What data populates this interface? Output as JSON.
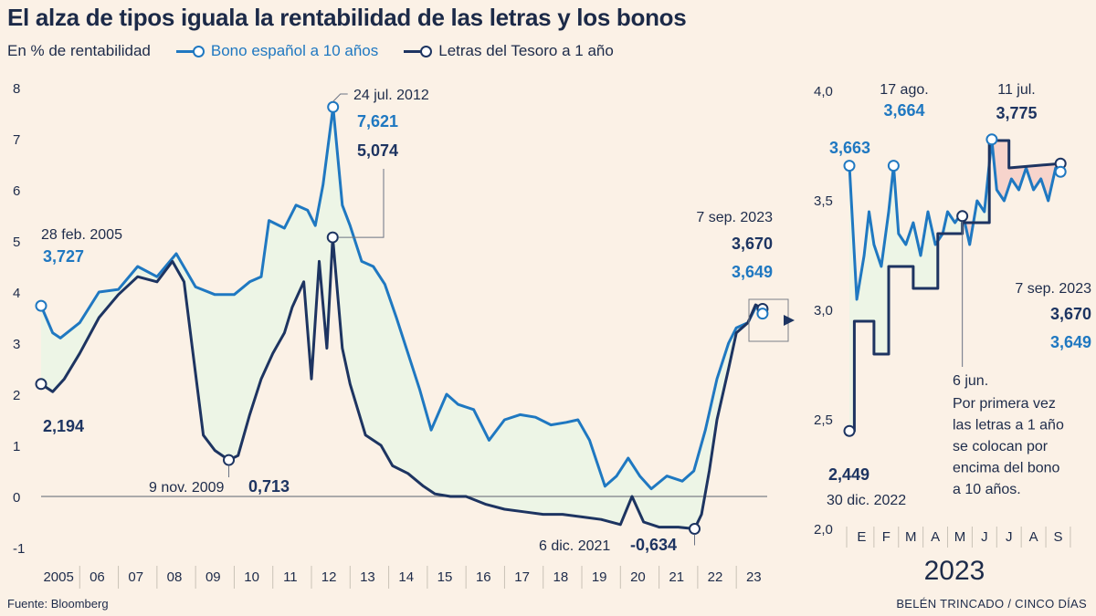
{
  "title": "El alza de tipos iguala la rentabilidad de las letras y los bonos",
  "unit_label": "En % de rentabilidad",
  "legend": [
    {
      "name": "Bono español a 10 años",
      "color": "#1f78c1"
    },
    {
      "name": "Letras del Tesoro a 1 año",
      "color": "#1d3461"
    }
  ],
  "colors": {
    "bono": "#1f78c1",
    "letras": "#1d3461",
    "fill": "#edf5e6",
    "fill_red": "#f7d4cc",
    "grid": "#c9c2b6",
    "text": "#1d2b4a"
  },
  "source": "Fuente: Bloomberg",
  "credit": "BELÉN TRINCADO / CINCO DÍAS",
  "chart_data": [
    {
      "type": "line",
      "id": "main",
      "x_labels": [
        "2005",
        "06",
        "07",
        "08",
        "09",
        "10",
        "11",
        "12",
        "13",
        "14",
        "15",
        "16",
        "17",
        "18",
        "19",
        "20",
        "21",
        "22",
        "23"
      ],
      "y_ticks": [
        "8",
        "7",
        "6",
        "5",
        "4",
        "3",
        "2",
        "1",
        "0",
        "-1"
      ],
      "ylim": [
        -1,
        8
      ],
      "xlim": [
        2005.0,
        2023.8
      ],
      "series": [
        {
          "name": "Bono español a 10 años",
          "points": [
            [
              2005.0,
              3.73
            ],
            [
              2005.3,
              3.2
            ],
            [
              2005.5,
              3.1
            ],
            [
              2006.0,
              3.4
            ],
            [
              2006.5,
              4.0
            ],
            [
              2007.0,
              4.05
            ],
            [
              2007.5,
              4.5
            ],
            [
              2008.0,
              4.3
            ],
            [
              2008.5,
              4.75
            ],
            [
              2009.0,
              4.1
            ],
            [
              2009.5,
              3.95
            ],
            [
              2010.0,
              3.95
            ],
            [
              2010.4,
              4.2
            ],
            [
              2010.7,
              4.3
            ],
            [
              2010.9,
              5.4
            ],
            [
              2011.3,
              5.25
            ],
            [
              2011.6,
              5.7
            ],
            [
              2011.9,
              5.6
            ],
            [
              2012.1,
              5.3
            ],
            [
              2012.3,
              6.1
            ],
            [
              2012.56,
              7.62
            ],
            [
              2012.8,
              5.7
            ],
            [
              2013.0,
              5.3
            ],
            [
              2013.3,
              4.6
            ],
            [
              2013.6,
              4.5
            ],
            [
              2013.9,
              4.15
            ],
            [
              2014.2,
              3.5
            ],
            [
              2014.5,
              2.8
            ],
            [
              2014.8,
              2.1
            ],
            [
              2015.1,
              1.3
            ],
            [
              2015.5,
              2.0
            ],
            [
              2015.8,
              1.8
            ],
            [
              2016.2,
              1.7
            ],
            [
              2016.6,
              1.1
            ],
            [
              2017.0,
              1.5
            ],
            [
              2017.4,
              1.6
            ],
            [
              2017.8,
              1.55
            ],
            [
              2018.2,
              1.4
            ],
            [
              2018.6,
              1.45
            ],
            [
              2018.9,
              1.5
            ],
            [
              2019.2,
              1.1
            ],
            [
              2019.6,
              0.2
            ],
            [
              2019.9,
              0.4
            ],
            [
              2020.2,
              0.75
            ],
            [
              2020.5,
              0.4
            ],
            [
              2020.8,
              0.15
            ],
            [
              2021.2,
              0.4
            ],
            [
              2021.6,
              0.3
            ],
            [
              2021.9,
              0.5
            ],
            [
              2022.2,
              1.3
            ],
            [
              2022.5,
              2.3
            ],
            [
              2022.8,
              3.0
            ],
            [
              2023.0,
              3.3
            ],
            [
              2023.3,
              3.4
            ],
            [
              2023.5,
              3.7
            ],
            [
              2023.68,
              3.649
            ]
          ]
        },
        {
          "name": "Letras del Tesoro a 1 año",
          "points": [
            [
              2005.0,
              2.2
            ],
            [
              2005.3,
              2.05
            ],
            [
              2005.6,
              2.3
            ],
            [
              2006.0,
              2.8
            ],
            [
              2006.5,
              3.5
            ],
            [
              2007.0,
              3.95
            ],
            [
              2007.5,
              4.3
            ],
            [
              2008.0,
              4.2
            ],
            [
              2008.4,
              4.6
            ],
            [
              2008.7,
              4.2
            ],
            [
              2008.9,
              3.0
            ],
            [
              2009.2,
              1.2
            ],
            [
              2009.5,
              0.9
            ],
            [
              2009.86,
              0.713
            ],
            [
              2010.1,
              0.8
            ],
            [
              2010.4,
              1.6
            ],
            [
              2010.7,
              2.3
            ],
            [
              2011.0,
              2.8
            ],
            [
              2011.3,
              3.2
            ],
            [
              2011.5,
              3.7
            ],
            [
              2011.8,
              4.2
            ],
            [
              2012.0,
              2.3
            ],
            [
              2012.2,
              4.6
            ],
            [
              2012.4,
              2.9
            ],
            [
              2012.55,
              5.07
            ],
            [
              2012.8,
              2.9
            ],
            [
              2013.0,
              2.2
            ],
            [
              2013.4,
              1.2
            ],
            [
              2013.8,
              1.0
            ],
            [
              2014.1,
              0.6
            ],
            [
              2014.5,
              0.45
            ],
            [
              2014.9,
              0.2
            ],
            [
              2015.2,
              0.05
            ],
            [
              2015.6,
              0.0
            ],
            [
              2016.0,
              0.0
            ],
            [
              2016.5,
              -0.15
            ],
            [
              2017.0,
              -0.25
            ],
            [
              2017.5,
              -0.3
            ],
            [
              2018.0,
              -0.35
            ],
            [
              2018.5,
              -0.35
            ],
            [
              2019.0,
              -0.4
            ],
            [
              2019.5,
              -0.45
            ],
            [
              2020.0,
              -0.55
            ],
            [
              2020.3,
              0.0
            ],
            [
              2020.6,
              -0.5
            ],
            [
              2021.0,
              -0.6
            ],
            [
              2021.5,
              -0.6
            ],
            [
              2021.92,
              -0.634
            ],
            [
              2022.1,
              -0.35
            ],
            [
              2022.3,
              0.5
            ],
            [
              2022.5,
              1.5
            ],
            [
              2022.8,
              2.5
            ],
            [
              2023.0,
              3.2
            ],
            [
              2023.3,
              3.4
            ],
            [
              2023.5,
              3.75
            ],
            [
              2023.68,
              3.67
            ]
          ]
        }
      ],
      "annotations": [
        {
          "date": "28 feb. 2005",
          "values": [
            "3,727",
            "2,194"
          ]
        },
        {
          "date": "9 nov. 2009",
          "values": [
            "0,713"
          ]
        },
        {
          "date": "24 jul. 2012",
          "values": [
            "7,621",
            "5,074"
          ]
        },
        {
          "date": "6 dic. 2021",
          "values": [
            "-0,634"
          ]
        },
        {
          "date": "7 sep. 2023",
          "values": [
            "3,670",
            "3,649"
          ]
        }
      ]
    },
    {
      "type": "line",
      "id": "inset",
      "title": "2023",
      "x_labels": [
        "E",
        "F",
        "M",
        "A",
        "M",
        "J",
        "J",
        "A",
        "S"
      ],
      "y_ticks": [
        "4,0",
        "3,5",
        "3,0",
        "2,5",
        "2,0"
      ],
      "ylim": [
        2.0,
        4.0
      ],
      "xlim": [
        0,
        9.3
      ],
      "series": [
        {
          "name": "Bono español a 10 años",
          "points": [
            [
              0,
              3.66
            ],
            [
              0.3,
              3.05
            ],
            [
              0.6,
              3.25
            ],
            [
              0.8,
              3.45
            ],
            [
              1.0,
              3.3
            ],
            [
              1.3,
              3.2
            ],
            [
              1.6,
              3.45
            ],
            [
              1.8,
              3.66
            ],
            [
              2.0,
              3.35
            ],
            [
              2.3,
              3.3
            ],
            [
              2.6,
              3.4
            ],
            [
              2.9,
              3.25
            ],
            [
              3.2,
              3.45
            ],
            [
              3.5,
              3.3
            ],
            [
              3.8,
              3.35
            ],
            [
              4.0,
              3.45
            ],
            [
              4.3,
              3.4
            ],
            [
              4.6,
              3.45
            ],
            [
              4.9,
              3.3
            ],
            [
              5.2,
              3.5
            ],
            [
              5.5,
              3.45
            ],
            [
              5.8,
              3.78
            ],
            [
              6.0,
              3.55
            ],
            [
              6.3,
              3.5
            ],
            [
              6.6,
              3.6
            ],
            [
              6.9,
              3.55
            ],
            [
              7.2,
              3.65
            ],
            [
              7.5,
              3.55
            ],
            [
              7.8,
              3.6
            ],
            [
              8.1,
              3.5
            ],
            [
              8.4,
              3.65
            ],
            [
              8.6,
              3.649
            ]
          ]
        },
        {
          "name": "Letras del Tesoro a 1 año",
          "points": [
            [
              0,
              2.449
            ],
            [
              0.2,
              2.449
            ],
            [
              0.2,
              2.95
            ],
            [
              1.0,
              2.95
            ],
            [
              1.0,
              2.8
            ],
            [
              1.6,
              2.8
            ],
            [
              1.6,
              3.2
            ],
            [
              2.6,
              3.2
            ],
            [
              2.6,
              3.1
            ],
            [
              3.6,
              3.1
            ],
            [
              3.6,
              3.35
            ],
            [
              4.6,
              3.35
            ],
            [
              4.6,
              3.4
            ],
            [
              5.7,
              3.4
            ],
            [
              5.7,
              3.775
            ],
            [
              6.5,
              3.775
            ],
            [
              6.5,
              3.65
            ],
            [
              8.6,
              3.67
            ]
          ]
        }
      ],
      "annotations": [
        {
          "date": "",
          "values": [
            "3,663"
          ]
        },
        {
          "date": "17 ago.",
          "values": [
            "3,664"
          ]
        },
        {
          "date": "11 jul.",
          "values": [
            "3,775"
          ]
        },
        {
          "date": "30 dic. 2022",
          "values": [
            "2,449"
          ]
        },
        {
          "date": "7 sep. 2023",
          "values": [
            "3,670",
            "3,649"
          ]
        },
        {
          "date": "6 jun.",
          "note": [
            "Por primera vez",
            "las letras a 1 año",
            "se colocan por",
            "encima del bono",
            "a 10 años."
          ]
        }
      ]
    }
  ]
}
